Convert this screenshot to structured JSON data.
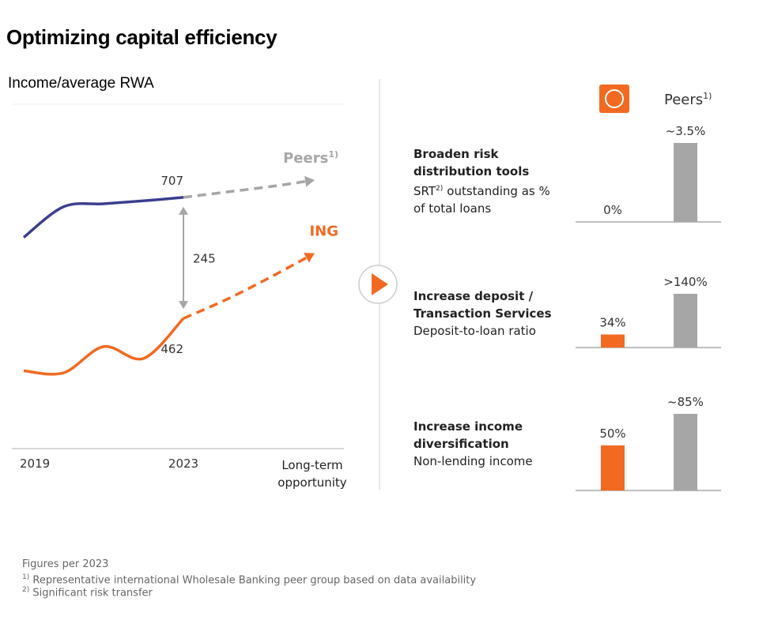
{
  "title": "Optimizing capital efficiency",
  "subtitle": "Income/average RWA",
  "chart_data": [
    {
      "type": "line",
      "categories": [
        "2019",
        null,
        null,
        null,
        "2023",
        null,
        null,
        "Long-term opportunity"
      ],
      "series": [
        {
          "name": "Peers",
          "name_note": "1)",
          "color": "#3c3f8f",
          "projection_color": "#a6a6a6",
          "values": [
            626,
            688,
            694,
            700,
            707,
            718,
            729,
            742
          ]
        },
        {
          "name": "ING",
          "color": "#f26a21",
          "projection_color": "#f26a21",
          "values": [
            356,
            352,
            405,
            381,
            462,
            501,
            546,
            594
          ]
        }
      ],
      "projection_from": "2023",
      "label_at": "2023",
      "gap": 245,
      "gap_color": "#a6a6a6"
    },
    {
      "type": "bar",
      "header": "Peers",
      "header_note": "1)",
      "panels": [
        {
          "title": "Broaden risk distribution tools",
          "subtitle": "SRT",
          "subtitle_note": "2)",
          "subtitle_end": "outstanding as % of total loans"
        },
        {
          "title": "Increase deposit / Transaction Services",
          "subtitle": "Deposit-to-loan ratio"
        },
        {
          "title": "Increase income diversification",
          "subtitle": "Non-lending income"
        }
      ],
      "series": [
        {
          "color": "#f26a21",
          "values": [
            0,
            34,
            50
          ],
          "value_labels": [
            "0%",
            "34%",
            "50%"
          ]
        },
        {
          "name": "Peers",
          "color": "#a6a6a6",
          "values": [
            3.5,
            140,
            85
          ],
          "value_labels": [
            "~3.5%",
            ">140%",
            "~85%"
          ]
        }
      ]
    }
  ],
  "footnotes": {
    "intro": "Figures per 2023",
    "notes": [
      {
        "mark": "1)",
        "text": "Representative international Wholesale Banking peer group based on data availability"
      },
      {
        "mark": "2)",
        "text": "Significant risk transfer"
      }
    ]
  }
}
